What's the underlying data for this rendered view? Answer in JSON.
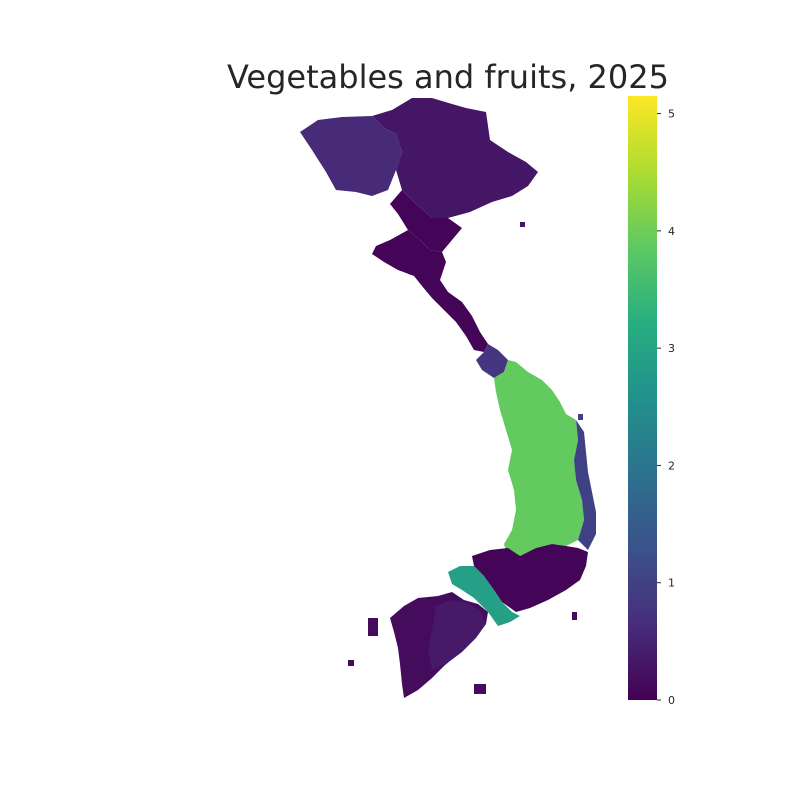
{
  "chart_data": {
    "type": "heatmap",
    "title": "Vegetables and fruits, 2025",
    "colormap": "viridis",
    "colorbar": {
      "range": [
        0,
        5.15
      ],
      "ticks": [
        {
          "value": 0,
          "label": "0"
        },
        {
          "value": 1,
          "label": "1"
        },
        {
          "value": 2,
          "label": "2"
        },
        {
          "value": 3,
          "label": "3"
        },
        {
          "value": 4,
          "label": "4"
        },
        {
          "value": 5,
          "label": "5"
        }
      ]
    },
    "regions": [
      {
        "name": "northwest",
        "value": 0.6
      },
      {
        "name": "northeast",
        "value": 0.3
      },
      {
        "name": "red-river-delta",
        "value": 0.05
      },
      {
        "name": "north-central-coast",
        "value": 0.05
      },
      {
        "name": "central-coast-south",
        "value": 0.8
      },
      {
        "name": "central-highlands",
        "value": 3.9
      },
      {
        "name": "south-central-coast-strip",
        "value": 1.0
      },
      {
        "name": "southeast-east",
        "value": 2.9
      },
      {
        "name": "southeast",
        "value": 0.05
      },
      {
        "name": "mekong-delta",
        "value": 0.15
      },
      {
        "name": "mekong-delta-inner",
        "value": 0.35
      }
    ],
    "legend": "colorbar-right",
    "grid": false
  }
}
